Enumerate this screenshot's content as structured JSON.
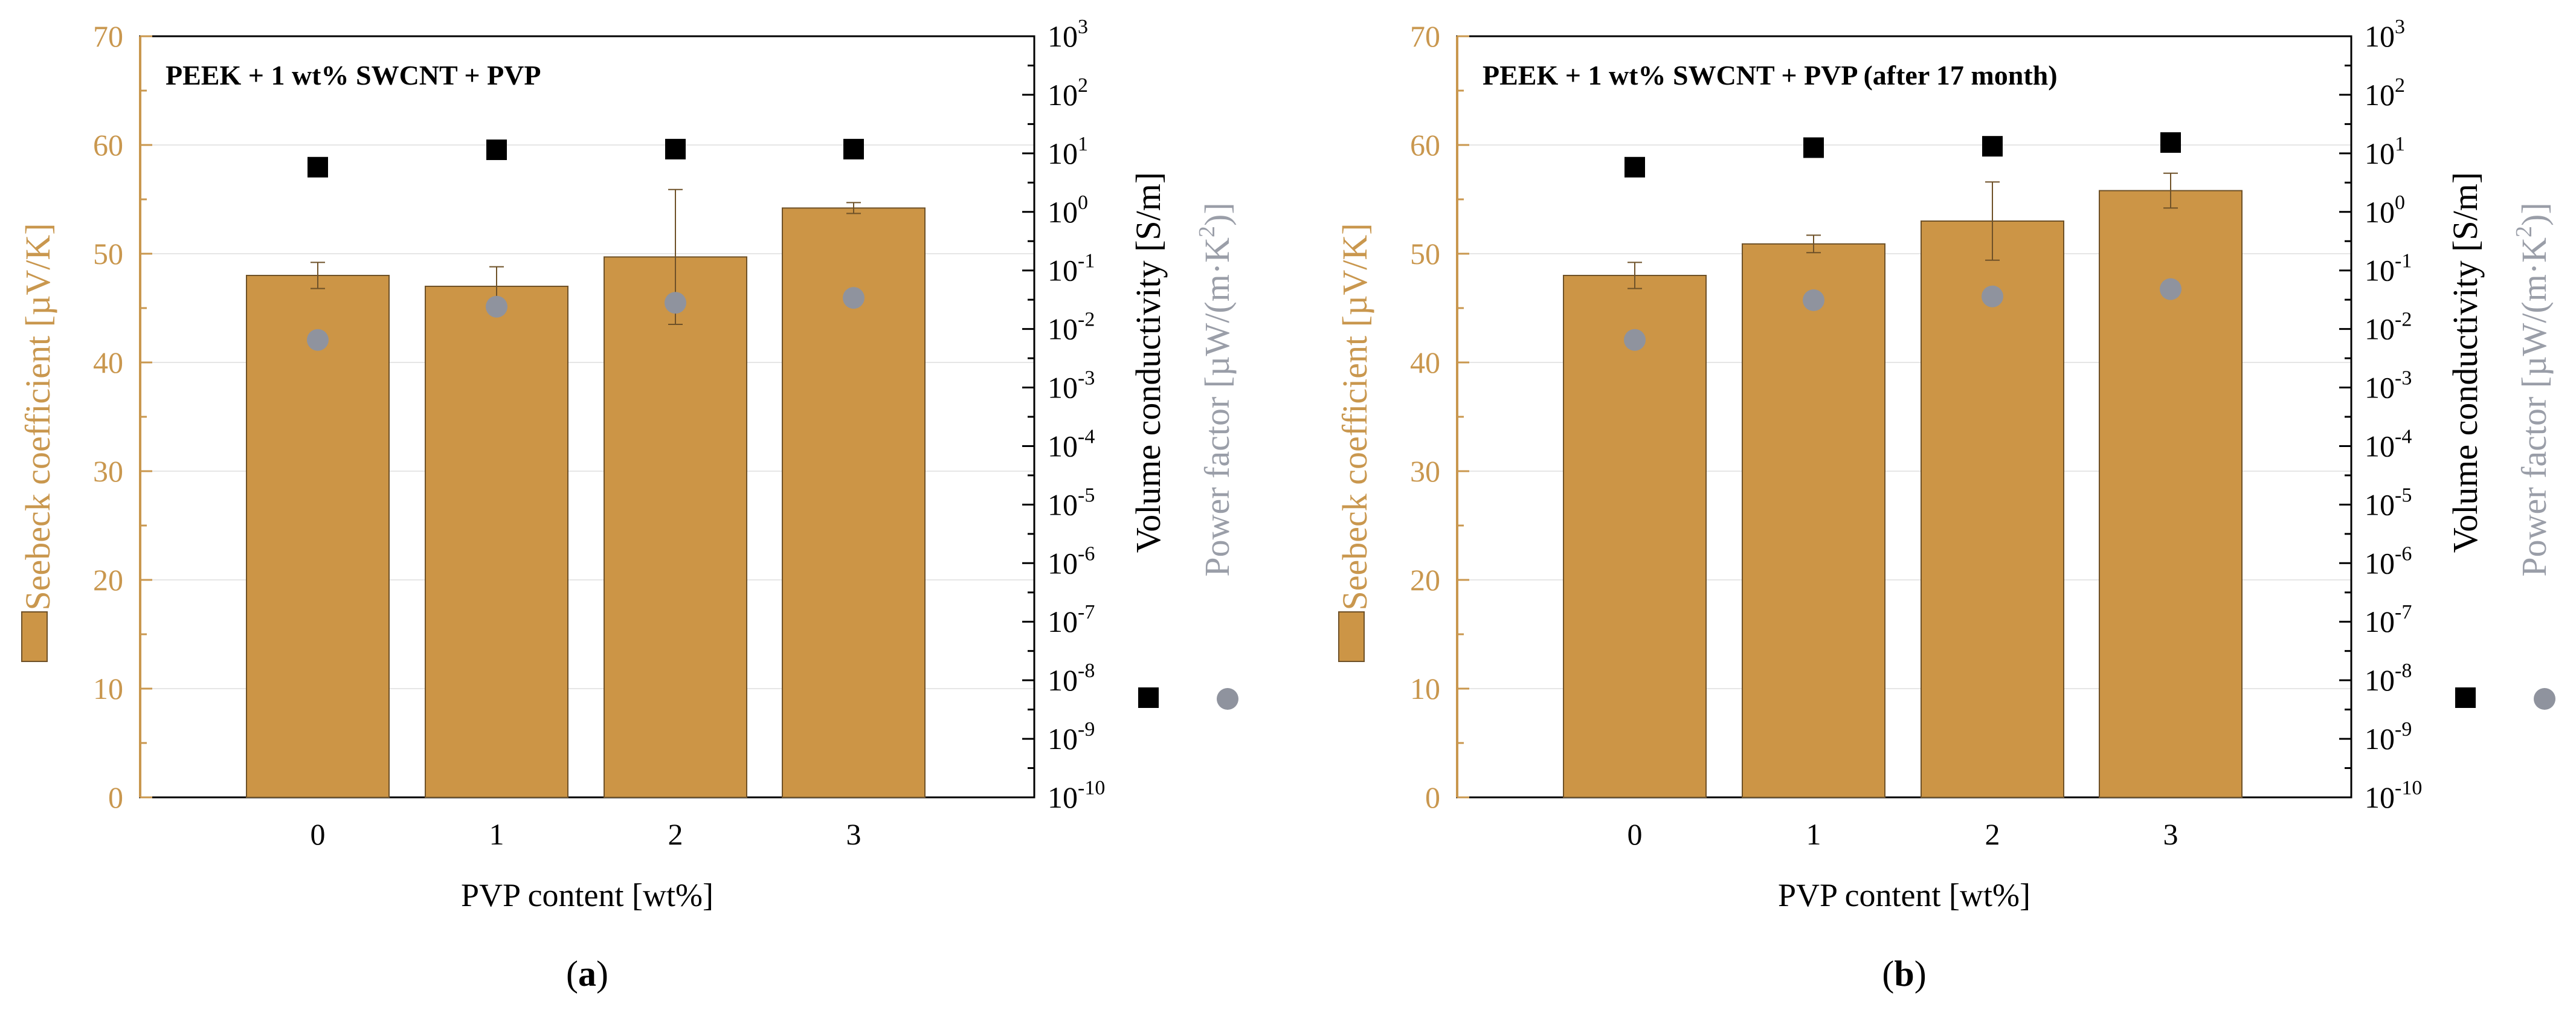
{
  "colors": {
    "bar": "#CC9546",
    "bar_edge": "#6E5128",
    "seebeck_axis": "#C9974E",
    "conductivity_marker": "#000000",
    "power_factor_marker": "#8F939E",
    "power_factor_text": "#9A9EA8",
    "axis": "#000000",
    "grid": "#E6E6E6"
  },
  "chart_data": [
    {
      "panel_label": "a",
      "type": "bar",
      "title": "PEEK + 1 wt% SWCNT + PVP",
      "xlabel": "PVP content [wt%]",
      "categories": [
        "0",
        "1",
        "2",
        "3"
      ],
      "ylabel_left": "Seebeck coefficient [µV/K]",
      "ylim_left": [
        0,
        70
      ],
      "yticks_left": [
        "0",
        "10",
        "20",
        "30",
        "40",
        "50",
        "60",
        "70"
      ],
      "ylabel_right_conductivity": "Volume conductivity [S/m]",
      "ylabel_right_power_factor_main": "Power factor [µW/(m·K",
      "ylabel_right_power_factor_exp": "2",
      "ylabel_right_power_factor_end": ")]",
      "ylim_right_log10": [
        -10,
        3
      ],
      "yticks_right_base": "10",
      "yticks_right_exponents": [
        "-10",
        "-9",
        "-8",
        "-7",
        "-6",
        "-5",
        "-4",
        "-3",
        "-2",
        "-1",
        "0",
        "1",
        "2",
        "3"
      ],
      "grid": "horizontal at left major ticks",
      "series": [
        {
          "name": "Seebeck coefficient",
          "kind": "bar",
          "values": [
            48.0,
            47.0,
            49.7,
            54.2
          ],
          "errors": [
            1.2,
            1.8,
            6.2,
            0.5
          ]
        },
        {
          "name": "Volume conductivity",
          "kind": "scatter-square",
          "values": [
            5.8,
            11.5,
            11.8,
            11.8
          ]
        },
        {
          "name": "Power factor",
          "kind": "scatter-circle",
          "values": [
            0.0065,
            0.024,
            0.028,
            0.034
          ]
        }
      ]
    },
    {
      "panel_label": "b",
      "type": "bar",
      "title": "PEEK + 1 wt% SWCNT + PVP (after 17 month)",
      "xlabel": "PVP content [wt%]",
      "categories": [
        "0",
        "1",
        "2",
        "3"
      ],
      "ylabel_left": "Seebeck coefficient [µV/K]",
      "ylim_left": [
        0,
        70
      ],
      "yticks_left": [
        "0",
        "10",
        "20",
        "30",
        "40",
        "50",
        "60",
        "70"
      ],
      "ylabel_right_conductivity": "Volume conductivity [S/m]",
      "ylabel_right_power_factor_main": "Power factor [µW/(m·K",
      "ylabel_right_power_factor_exp": "2",
      "ylabel_right_power_factor_end": ")]",
      "ylim_right_log10": [
        -10,
        3
      ],
      "yticks_right_base": "10",
      "yticks_right_exponents": [
        "-10",
        "-9",
        "-8",
        "-7",
        "-6",
        "-5",
        "-4",
        "-3",
        "-2",
        "-1",
        "0",
        "1",
        "2",
        "3"
      ],
      "grid": "horizontal at left major ticks",
      "series": [
        {
          "name": "Seebeck coefficient",
          "kind": "bar",
          "values": [
            48.0,
            50.9,
            53.0,
            55.8
          ],
          "errors": [
            1.2,
            0.8,
            3.6,
            1.6
          ]
        },
        {
          "name": "Volume conductivity",
          "kind": "scatter-square",
          "values": [
            5.8,
            12.5,
            13.2,
            15.3
          ]
        },
        {
          "name": "Power factor",
          "kind": "scatter-circle",
          "values": [
            0.0065,
            0.031,
            0.036,
            0.048
          ]
        }
      ]
    }
  ]
}
